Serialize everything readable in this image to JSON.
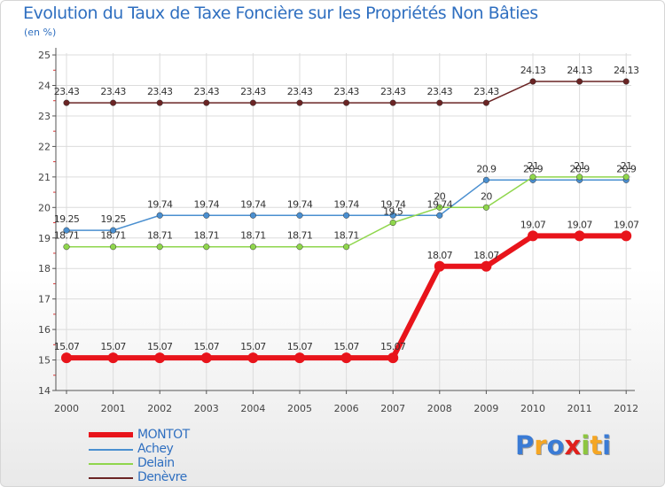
{
  "title": "Evolution du Taux de Taxe Foncière sur les Propriétés Non Bâties",
  "subtitle": "(en %)",
  "logo": {
    "letters": [
      "P",
      "r",
      "o",
      "x",
      "i",
      "t",
      "i"
    ],
    "colors": [
      "#3a7bd5",
      "#f5a623",
      "#3a7bd5",
      "#e0201b",
      "#8dc63f",
      "#f5a623",
      "#3a7bd5"
    ]
  },
  "chart_data": {
    "type": "line",
    "title": "Evolution du Taux de Taxe Foncière sur les Propriétés Non Bâties",
    "ylabel": "(en %)",
    "xlabel": "",
    "ylim": [
      14,
      25
    ],
    "yticks": [
      "14",
      "15",
      "16",
      "17",
      "18",
      "19",
      "20",
      "21",
      "22",
      "23",
      "24",
      "25"
    ],
    "categories": [
      "2000",
      "2001",
      "2002",
      "2003",
      "2004",
      "2005",
      "2006",
      "2007",
      "2008",
      "2009",
      "2010",
      "2011",
      "2012"
    ],
    "grid": true,
    "series": [
      {
        "name": "Denèvre",
        "color": "#6a2424",
        "values": [
          23.43,
          23.43,
          23.43,
          23.43,
          23.43,
          23.43,
          23.43,
          23.43,
          23.43,
          23.43,
          24.13,
          24.13,
          24.13
        ],
        "labels": [
          "23.43",
          "23.43",
          "23.43",
          "23.43",
          "23.43",
          "23.43",
          "23.43",
          "23.43",
          "23.43",
          "23.43",
          "24.13",
          "24.13",
          "24.13"
        ]
      },
      {
        "name": "Achey",
        "color": "#4a8fd0",
        "values": [
          19.25,
          19.25,
          19.74,
          19.74,
          19.74,
          19.74,
          19.74,
          19.74,
          19.74,
          20.9,
          20.9,
          20.9,
          20.9
        ],
        "labels": [
          "19.25",
          "19.25",
          "19.74",
          "19.74",
          "19.74",
          "19.74",
          "19.74",
          "19.74",
          "19.74",
          "20.9",
          "20.9",
          "20.9",
          "20.9"
        ]
      },
      {
        "name": "Delain",
        "color": "#8fd64c",
        "values": [
          18.71,
          18.71,
          18.71,
          18.71,
          18.71,
          18.71,
          18.71,
          19.5,
          20,
          20,
          21,
          21,
          21
        ],
        "labels": [
          "18.71",
          "18.71",
          "18.71",
          "18.71",
          "18.71",
          "18.71",
          "18.71",
          "19.5",
          "20",
          "20",
          "21",
          "21",
          "21"
        ]
      },
      {
        "name": "MONTOT",
        "color": "#e8141b",
        "values": [
          15.07,
          15.07,
          15.07,
          15.07,
          15.07,
          15.07,
          15.07,
          15.07,
          18.07,
          18.07,
          19.07,
          19.07,
          19.07
        ],
        "labels": [
          "15.07",
          "15.07",
          "15.07",
          "15.07",
          "15.07",
          "15.07",
          "15.07",
          "15.07",
          "18.07",
          "18.07",
          "19.07",
          "19.07",
          "19.07"
        ]
      }
    ],
    "legend": [
      {
        "name": "MONTOT",
        "color": "#e8141b",
        "thick": true
      },
      {
        "name": "Achey",
        "color": "#4a8fd0",
        "thick": false
      },
      {
        "name": "Delain",
        "color": "#8fd64c",
        "thick": false
      },
      {
        "name": "Denèvre",
        "color": "#6a2424",
        "thick": false
      }
    ]
  }
}
